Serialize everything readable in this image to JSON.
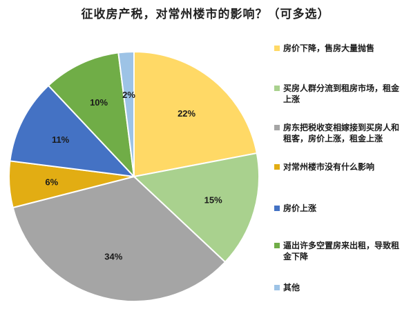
{
  "title": "征收房产税，对常州楼市的影响？（可多选）",
  "chart_data": {
    "type": "pie",
    "title": "征收房产税，对常州楼市的影响？（可多选）",
    "slices": [
      {
        "label": "房价下降，售房大量抛售",
        "value": 22,
        "value_label": "22%",
        "color": "#FFD966"
      },
      {
        "label": "买房人群分流到租房市场，租金上涨",
        "value": 15,
        "value_label": "15%",
        "color": "#A9D18E"
      },
      {
        "label": "房东把税收变相嫁接到买房人和租客，房价上涨，租金上涨",
        "value": 34,
        "value_label": "34%",
        "color": "#A5A5A5"
      },
      {
        "label": "对常州楼市没有什么影响",
        "value": 6,
        "value_label": "6%",
        "color": "#E2AD13"
      },
      {
        "label": "房价上涨",
        "value": 11,
        "value_label": "11%",
        "color": "#4472C4"
      },
      {
        "label": "逼出许多空置房来出租，导致租金下降",
        "value": 10,
        "value_label": "10%",
        "color": "#70AD47"
      },
      {
        "label": "其他",
        "value": 2,
        "value_label": "2%",
        "color": "#9DC3E6"
      }
    ],
    "legend_position": "right",
    "start_angle": "12 o'clock",
    "direction": "clockwise"
  }
}
